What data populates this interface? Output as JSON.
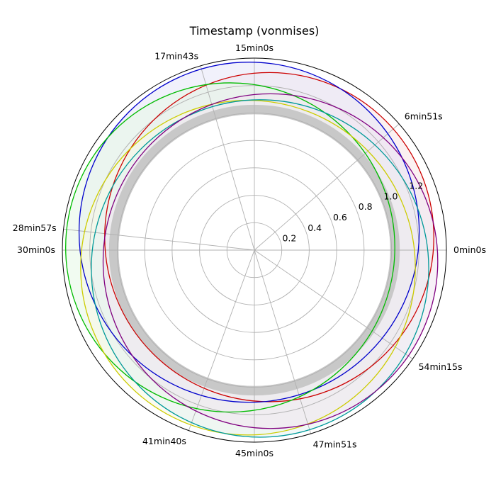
{
  "chart_data": {
    "type": "polar-line",
    "title": "Timestamp (vonmises)",
    "angle_unit": "seconds of an hour",
    "r_ticks": [
      0.2,
      0.4,
      0.6,
      0.8,
      1.0,
      1.2
    ],
    "r_tick_labels": [
      "0.2",
      "0.4",
      "0.6",
      "0.8",
      "1.0",
      "1.2"
    ],
    "r_max": 1.4,
    "grid": true,
    "angle_ticks": [
      {
        "seconds": 0,
        "label": "0min0s"
      },
      {
        "seconds": 411,
        "label": "6min51s"
      },
      {
        "seconds": 900,
        "label": "15min0s"
      },
      {
        "seconds": 1063,
        "label": "17min43s"
      },
      {
        "seconds": 1737,
        "label": "28min57s"
      },
      {
        "seconds": 1800,
        "label": "30min0s"
      },
      {
        "seconds": 2500,
        "label": "41min40s"
      },
      {
        "seconds": 2700,
        "label": "45min0s"
      },
      {
        "seconds": 2871,
        "label": "47min51s"
      },
      {
        "seconds": 3255,
        "label": "54min15s"
      }
    ],
    "base_band": {
      "r_inner": 0.99,
      "r_outer": 1.06,
      "color": "#c8c8c8"
    },
    "series": [
      {
        "color": "#cc0000",
        "center_offset_r": 0.144,
        "center_angle_seconds": 411,
        "radius": 1.2,
        "fill": "#f7e6e6"
      },
      {
        "color": "#0000cc",
        "center_offset_r": 0.136,
        "center_angle_seconds": 1063,
        "radius": 1.24,
        "fill": "#e6e6f7"
      },
      {
        "color": "#00bb00",
        "center_offset_r": 0.177,
        "center_angle_seconds": 1737,
        "radius": 1.2,
        "fill": "#e6f7e6"
      },
      {
        "color": "#cccc00",
        "center_offset_r": 0.136,
        "center_angle_seconds": 2500,
        "radius": 1.22,
        "fill": "#f7f7e6"
      },
      {
        "color": "#009999",
        "center_offset_r": 0.14,
        "center_angle_seconds": 2871,
        "radius": 1.23,
        "fill": "#e6f2f2"
      },
      {
        "color": "#800080",
        "center_offset_r": 0.142,
        "center_angle_seconds": 3255,
        "radius": 1.22,
        "fill": "#f0e6f0"
      }
    ]
  }
}
